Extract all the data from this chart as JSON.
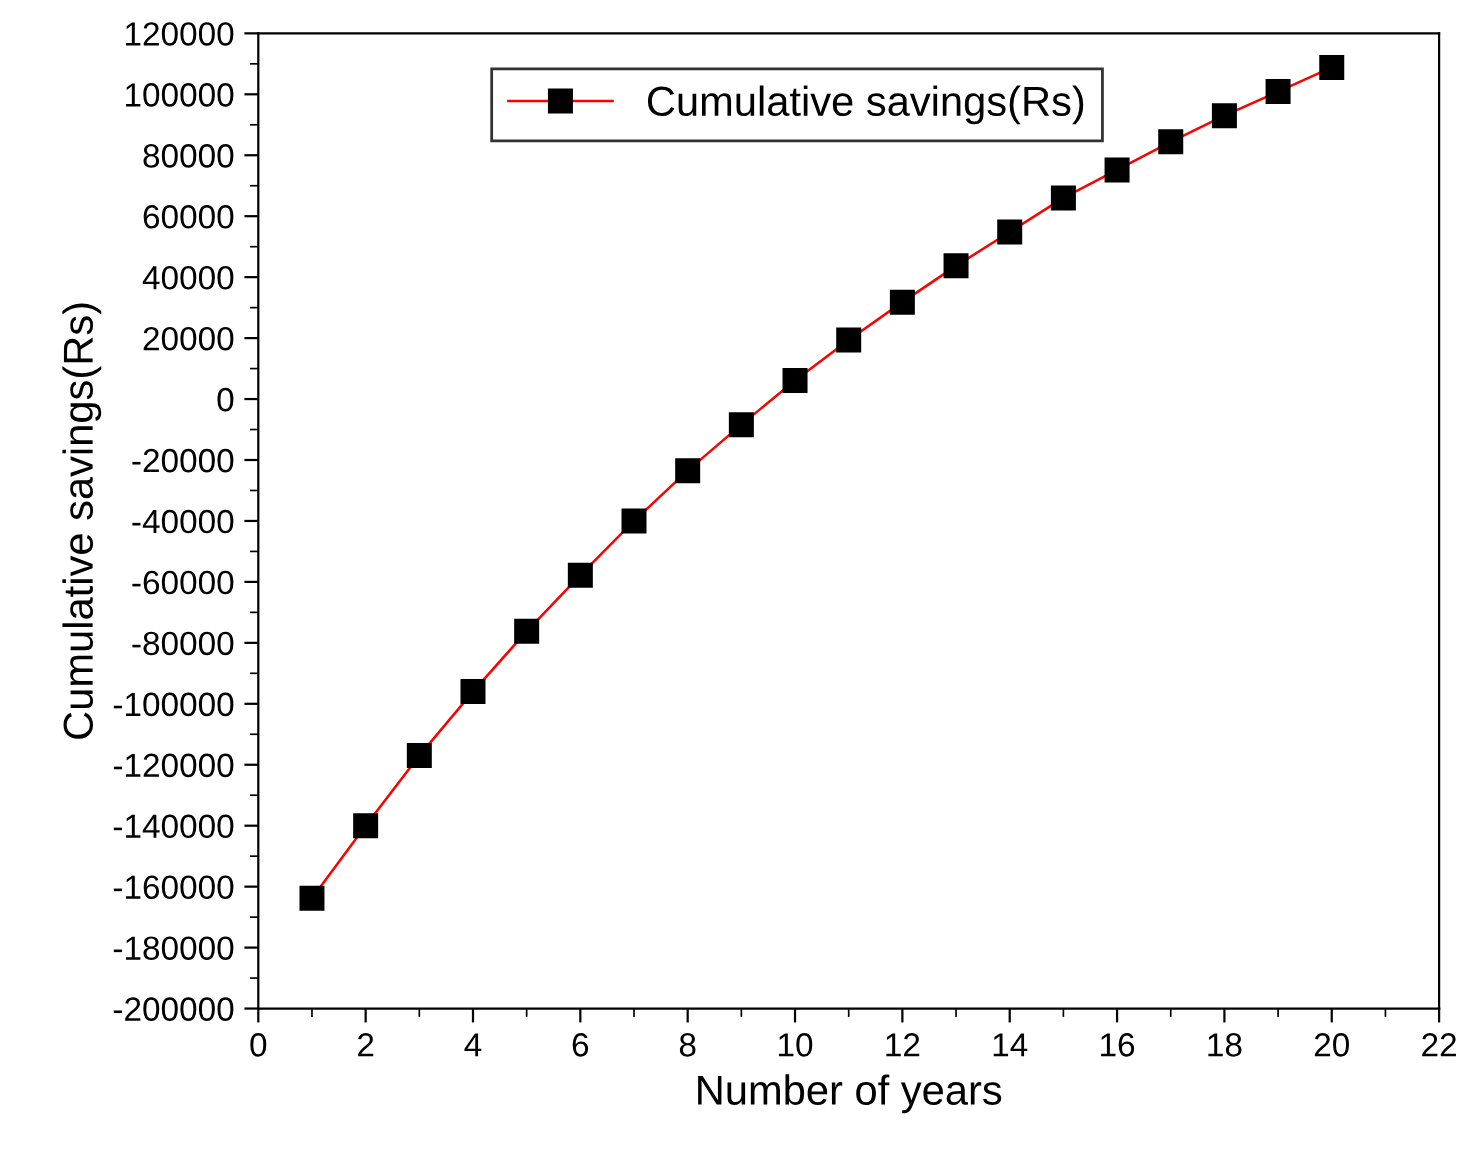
{
  "chart_data": {
    "type": "line",
    "xlabel": "Number of years",
    "ylabel": "Cumulative savings(Rs)",
    "x": [
      1,
      2,
      3,
      4,
      5,
      6,
      7,
      8,
      9,
      10,
      11,
      12,
      13,
      14,
      15,
      16,
      17,
      18,
      19,
      20
    ],
    "series": [
      {
        "name": "Cumulative savings(Rs)",
        "color": "#ff0000",
        "values": [
          -163800,
          -140000,
          -117000,
          -96000,
          -76200,
          -57800,
          -40000,
          -23500,
          -8400,
          6100,
          19400,
          31800,
          43700,
          54800,
          66000,
          75200,
          84400,
          93000,
          100900,
          108800
        ]
      }
    ],
    "xlim": [
      0,
      22
    ],
    "xticks": [
      0,
      2,
      4,
      6,
      8,
      10,
      12,
      14,
      16,
      18,
      20,
      22
    ],
    "ylim": [
      -200000,
      120000
    ],
    "yticks": [
      -200000,
      -180000,
      -160000,
      -140000,
      -120000,
      -100000,
      -80000,
      -60000,
      -40000,
      -20000,
      0,
      20000,
      40000,
      60000,
      80000,
      100000,
      120000
    ],
    "marker": "square",
    "line_style": "solid",
    "legend": "top left",
    "grid": false
  }
}
